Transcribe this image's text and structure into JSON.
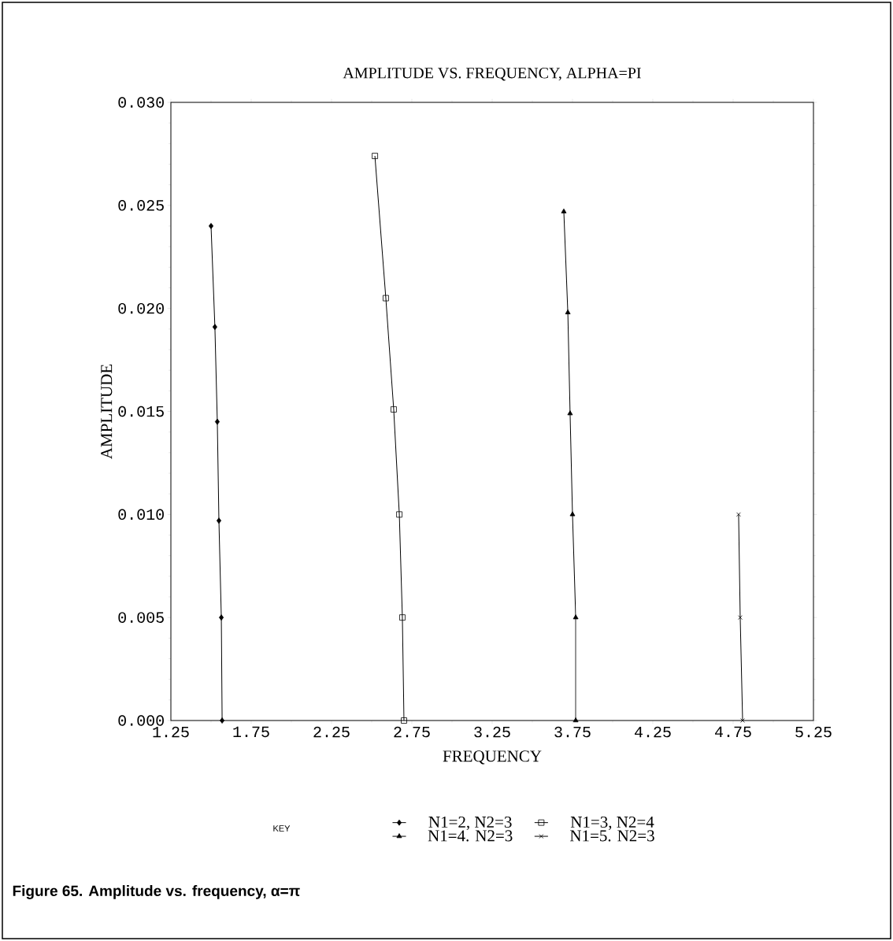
{
  "chart_data": {
    "type": "line",
    "title": "AMPLITUDE VS. FREQUENCY, ALPHA=PI",
    "xlabel": "FREQUENCY",
    "ylabel": "AMPLITUDE",
    "legend_title": "KEY",
    "legend": "bottom",
    "grid": false,
    "line_style": "solid",
    "xlim": [
      1.25,
      5.25
    ],
    "ylim": [
      0,
      0.03
    ],
    "xticks": [
      1.25,
      1.75,
      2.25,
      2.75,
      3.25,
      3.75,
      4.25,
      4.75,
      5.25
    ],
    "yticks": [
      {
        "value": 0,
        "label": "0.000"
      },
      {
        "value": 0.005,
        "label": "0.005"
      },
      {
        "value": 0.01,
        "label": "0.010"
      },
      {
        "value": 0.015,
        "label": "0.015"
      },
      {
        "value": 0.02,
        "label": "0.020"
      },
      {
        "value": 0.025,
        "label": "0.025"
      },
      {
        "value": 0.03,
        "label": "0.030"
      }
    ],
    "annotations": [
      "**Figure 65.     Amplitude vs. frequency, α=π**"
    ],
    "series": [
      {
        "name": "N1=2, N2=3",
        "color": "#000000",
        "marker": "diamond",
        "x": [
          1.5,
          1.524,
          1.539,
          1.549,
          1.564,
          1.569
        ],
        "values": [
          0.024,
          0.0191,
          0.0145,
          0.0097,
          0.005,
          0.0
        ]
      },
      {
        "name": "N1=3, N2=4",
        "color": "#000000",
        "marker": "square",
        "x": [
          2.52,
          2.588,
          2.637,
          2.672,
          2.691,
          2.701
        ],
        "values": [
          0.0274,
          0.0205,
          0.0151,
          0.01,
          0.005,
          0.0
        ]
      },
      {
        "name": "N1=4. N2=3",
        "color": "#000000",
        "marker": "triangle",
        "x": [
          3.696,
          3.721,
          3.735,
          3.75,
          3.77,
          3.77
        ],
        "values": [
          0.0247,
          0.0198,
          0.0149,
          0.01,
          0.005,
          0.0
        ]
      },
      {
        "name": "N1=5. N2=3",
        "color": "#000000",
        "marker": "cross",
        "x": [
          4.784,
          4.794,
          4.809
        ],
        "values": [
          0.01,
          0.005,
          0.0
        ]
      }
    ]
  }
}
